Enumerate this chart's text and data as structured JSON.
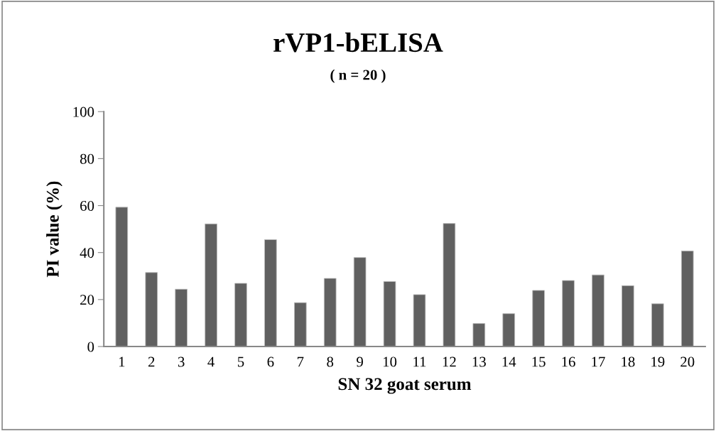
{
  "chart_data": {
    "type": "bar",
    "title": "rVP1-bELISA",
    "subtitle": "( n = 20 )",
    "xlabel": "SN 32 goat serum",
    "ylabel": "PI value (%)",
    "categories": [
      "1",
      "2",
      "3",
      "4",
      "5",
      "6",
      "7",
      "8",
      "9",
      "10",
      "11",
      "12",
      "13",
      "14",
      "15",
      "16",
      "17",
      "18",
      "19",
      "20"
    ],
    "values": [
      59.3,
      31.5,
      24.4,
      52.2,
      26.9,
      45.5,
      18.7,
      29,
      37.9,
      27.7,
      22.1,
      52.4,
      9.8,
      14,
      23.9,
      28.1,
      30.5,
      25.9,
      18.2,
      40.7
    ],
    "color": "#606060",
    "ylim": [
      0,
      100
    ],
    "yticks": [
      0,
      20,
      40,
      60,
      80,
      100
    ],
    "grid": false,
    "legend": false
  }
}
